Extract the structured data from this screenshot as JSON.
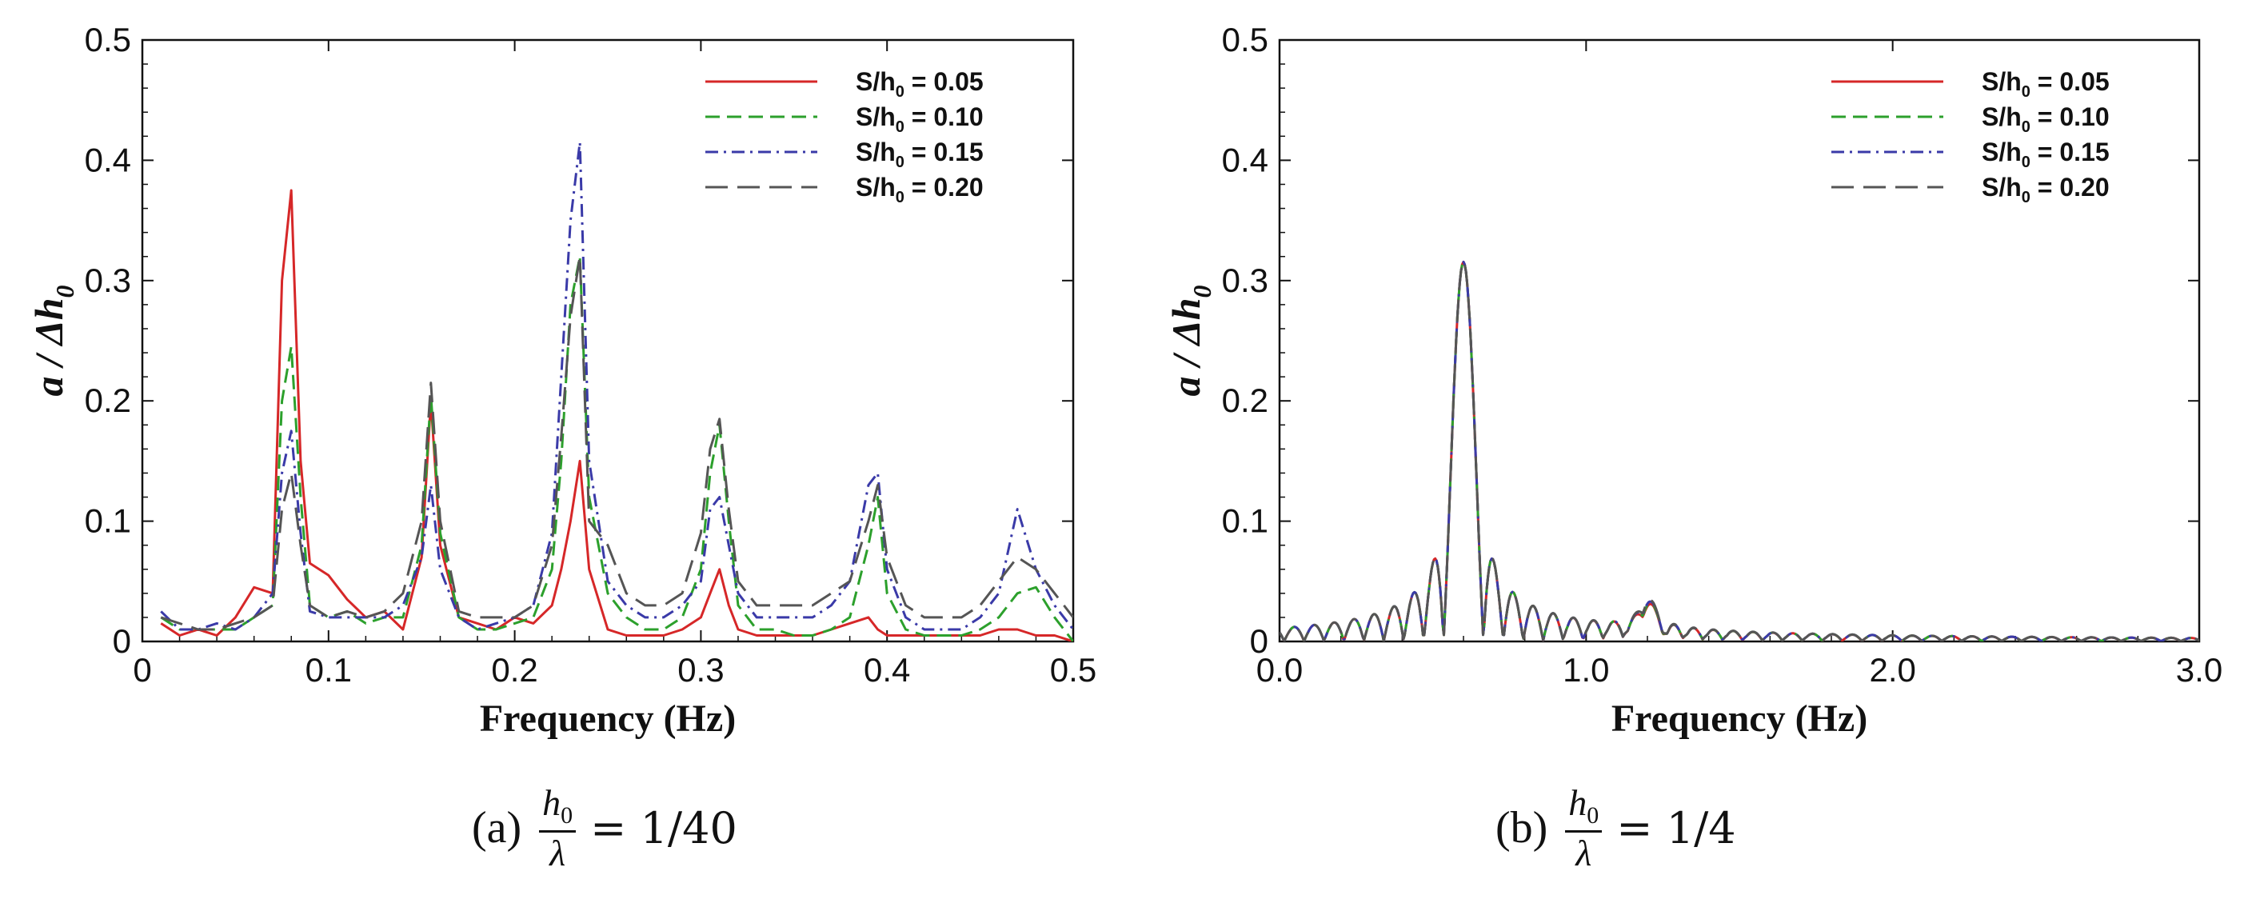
{
  "chart_data": [
    {
      "type": "line",
      "panel": "a",
      "xlabel": "Frequency (Hz)",
      "ylabel": "a / Δh",
      "ylabel_sub": "0",
      "xlim": [
        0,
        0.5
      ],
      "ylim": [
        0,
        0.5
      ],
      "x_ticks": [
        0,
        0.1,
        0.2,
        0.3,
        0.4,
        0.5
      ],
      "x_tick_labels": [
        "0",
        "0.1",
        "0.2",
        "0.3",
        "0.4",
        "0.5"
      ],
      "y_ticks": [
        0,
        0.1,
        0.2,
        0.3,
        0.4,
        0.5
      ],
      "y_tick_labels": [
        "0",
        "0.1",
        "0.2",
        "0.3",
        "0.4",
        "0.5"
      ],
      "legend_position": "top-right",
      "caption": {
        "label": "(a)",
        "frac_num": "h",
        "frac_num_sub": "0",
        "frac_den": "λ",
        "rhs": "= 1/40"
      },
      "series": [
        {
          "name": "S/h₀ = 0.05",
          "legend_main": "S/h",
          "legend_sub": "0",
          "legend_value": " = 0.05",
          "color": "#d62728",
          "dash": "solid",
          "x": [
            0.01,
            0.02,
            0.03,
            0.04,
            0.05,
            0.06,
            0.07,
            0.075,
            0.08,
            0.085,
            0.09,
            0.1,
            0.11,
            0.12,
            0.13,
            0.14,
            0.15,
            0.155,
            0.16,
            0.17,
            0.18,
            0.19,
            0.2,
            0.21,
            0.22,
            0.225,
            0.23,
            0.235,
            0.24,
            0.25,
            0.26,
            0.27,
            0.28,
            0.29,
            0.3,
            0.305,
            0.31,
            0.315,
            0.32,
            0.33,
            0.34,
            0.35,
            0.36,
            0.37,
            0.38,
            0.39,
            0.395,
            0.4,
            0.41,
            0.42,
            0.43,
            0.44,
            0.45,
            0.46,
            0.47,
            0.48,
            0.49,
            0.5
          ],
          "y": [
            0.015,
            0.005,
            0.01,
            0.005,
            0.02,
            0.045,
            0.04,
            0.3,
            0.375,
            0.15,
            0.065,
            0.055,
            0.035,
            0.02,
            0.025,
            0.01,
            0.07,
            0.2,
            0.08,
            0.02,
            0.015,
            0.01,
            0.02,
            0.015,
            0.03,
            0.06,
            0.1,
            0.15,
            0.06,
            0.01,
            0.005,
            0.005,
            0.005,
            0.01,
            0.02,
            0.04,
            0.06,
            0.03,
            0.01,
            0.005,
            0.005,
            0.005,
            0.005,
            0.01,
            0.015,
            0.02,
            0.01,
            0.005,
            0.005,
            0.005,
            0.005,
            0.005,
            0.005,
            0.01,
            0.01,
            0.005,
            0.005,
            0.0
          ]
        },
        {
          "name": "S/h₀ = 0.10",
          "legend_main": "S/h",
          "legend_sub": "0",
          "legend_value": " = 0.10",
          "color": "#2ca02c",
          "dash": "dashed",
          "x": [
            0.01,
            0.02,
            0.03,
            0.04,
            0.05,
            0.06,
            0.07,
            0.075,
            0.08,
            0.085,
            0.09,
            0.1,
            0.11,
            0.12,
            0.13,
            0.14,
            0.15,
            0.155,
            0.16,
            0.17,
            0.18,
            0.19,
            0.2,
            0.21,
            0.22,
            0.225,
            0.23,
            0.235,
            0.24,
            0.25,
            0.26,
            0.27,
            0.28,
            0.29,
            0.3,
            0.305,
            0.31,
            0.315,
            0.32,
            0.33,
            0.34,
            0.35,
            0.36,
            0.37,
            0.38,
            0.39,
            0.395,
            0.4,
            0.41,
            0.42,
            0.43,
            0.44,
            0.45,
            0.46,
            0.47,
            0.48,
            0.49,
            0.5
          ],
          "y": [
            0.02,
            0.01,
            0.01,
            0.01,
            0.01,
            0.02,
            0.03,
            0.2,
            0.245,
            0.12,
            0.03,
            0.02,
            0.025,
            0.015,
            0.02,
            0.02,
            0.08,
            0.205,
            0.09,
            0.02,
            0.01,
            0.01,
            0.015,
            0.02,
            0.06,
            0.15,
            0.28,
            0.32,
            0.12,
            0.04,
            0.02,
            0.01,
            0.01,
            0.02,
            0.06,
            0.14,
            0.18,
            0.1,
            0.03,
            0.01,
            0.01,
            0.005,
            0.005,
            0.01,
            0.02,
            0.08,
            0.12,
            0.04,
            0.01,
            0.005,
            0.005,
            0.005,
            0.01,
            0.02,
            0.04,
            0.045,
            0.02,
            0.0
          ]
        },
        {
          "name": "S/h₀ = 0.15",
          "legend_main": "S/h",
          "legend_sub": "0",
          "legend_value": " = 0.15",
          "color": "#3a3aa8",
          "dash": "dashdot",
          "x": [
            0.01,
            0.02,
            0.03,
            0.04,
            0.05,
            0.06,
            0.07,
            0.075,
            0.08,
            0.085,
            0.09,
            0.1,
            0.11,
            0.12,
            0.13,
            0.14,
            0.15,
            0.155,
            0.16,
            0.17,
            0.18,
            0.19,
            0.2,
            0.21,
            0.22,
            0.225,
            0.23,
            0.235,
            0.24,
            0.25,
            0.26,
            0.27,
            0.28,
            0.29,
            0.3,
            0.305,
            0.31,
            0.315,
            0.32,
            0.33,
            0.34,
            0.35,
            0.36,
            0.37,
            0.38,
            0.39,
            0.395,
            0.4,
            0.41,
            0.42,
            0.43,
            0.44,
            0.45,
            0.46,
            0.47,
            0.48,
            0.49,
            0.5
          ],
          "y": [
            0.025,
            0.01,
            0.01,
            0.015,
            0.01,
            0.02,
            0.04,
            0.14,
            0.175,
            0.09,
            0.025,
            0.02,
            0.02,
            0.02,
            0.02,
            0.03,
            0.07,
            0.13,
            0.06,
            0.02,
            0.01,
            0.015,
            0.02,
            0.03,
            0.09,
            0.22,
            0.35,
            0.415,
            0.15,
            0.05,
            0.03,
            0.02,
            0.02,
            0.03,
            0.05,
            0.11,
            0.12,
            0.08,
            0.04,
            0.02,
            0.02,
            0.02,
            0.02,
            0.03,
            0.05,
            0.13,
            0.14,
            0.06,
            0.02,
            0.01,
            0.01,
            0.01,
            0.02,
            0.04,
            0.11,
            0.06,
            0.03,
            0.01
          ]
        },
        {
          "name": "S/h₀ = 0.20",
          "legend_main": "S/h",
          "legend_sub": "0",
          "legend_value": " = 0.20",
          "color": "#555555",
          "dash": "longdash",
          "x": [
            0.01,
            0.02,
            0.03,
            0.04,
            0.05,
            0.06,
            0.07,
            0.075,
            0.08,
            0.085,
            0.09,
            0.1,
            0.11,
            0.12,
            0.13,
            0.14,
            0.15,
            0.155,
            0.16,
            0.17,
            0.18,
            0.19,
            0.2,
            0.21,
            0.22,
            0.225,
            0.23,
            0.235,
            0.24,
            0.25,
            0.26,
            0.27,
            0.28,
            0.29,
            0.3,
            0.305,
            0.31,
            0.315,
            0.32,
            0.33,
            0.34,
            0.35,
            0.36,
            0.37,
            0.38,
            0.39,
            0.395,
            0.4,
            0.41,
            0.42,
            0.43,
            0.44,
            0.45,
            0.46,
            0.47,
            0.48,
            0.49,
            0.5
          ],
          "y": [
            0.02,
            0.015,
            0.01,
            0.01,
            0.015,
            0.02,
            0.03,
            0.11,
            0.14,
            0.08,
            0.03,
            0.02,
            0.025,
            0.02,
            0.025,
            0.04,
            0.1,
            0.215,
            0.1,
            0.025,
            0.02,
            0.02,
            0.02,
            0.03,
            0.08,
            0.17,
            0.27,
            0.32,
            0.1,
            0.08,
            0.04,
            0.03,
            0.03,
            0.04,
            0.09,
            0.16,
            0.185,
            0.11,
            0.05,
            0.03,
            0.03,
            0.03,
            0.03,
            0.04,
            0.05,
            0.1,
            0.13,
            0.07,
            0.03,
            0.02,
            0.02,
            0.02,
            0.03,
            0.05,
            0.07,
            0.06,
            0.04,
            0.02
          ]
        }
      ]
    },
    {
      "type": "line",
      "panel": "b",
      "xlabel": "Frequency (Hz)",
      "ylabel": "a / Δh",
      "ylabel_sub": "0",
      "xlim": [
        0,
        3.0
      ],
      "ylim": [
        0,
        0.5
      ],
      "x_ticks": [
        0,
        1.0,
        2.0,
        3.0
      ],
      "x_tick_labels": [
        "0.0",
        "1.0",
        "2.0",
        "3.0"
      ],
      "y_ticks": [
        0,
        0.1,
        0.2,
        0.3,
        0.4,
        0.5
      ],
      "y_tick_labels": [
        "0",
        "0.1",
        "0.2",
        "0.3",
        "0.4",
        "0.5"
      ],
      "legend_position": "top-right",
      "caption": {
        "label": "(b)",
        "frac_num": "h",
        "frac_num_sub": "0",
        "frac_den": "λ",
        "rhs": "= 1/4"
      },
      "peak_frequency": 0.6,
      "peak_value": 0.315,
      "series": [
        {
          "name": "S/h₀ = 0.05",
          "legend_main": "S/h",
          "legend_sub": "0",
          "legend_value": " = 0.05",
          "color": "#d62728",
          "dash": "solid"
        },
        {
          "name": "S/h₀ = 0.10",
          "legend_main": "S/h",
          "legend_sub": "0",
          "legend_value": " = 0.10",
          "color": "#2ca02c",
          "dash": "dashed"
        },
        {
          "name": "S/h₀ = 0.15",
          "legend_main": "S/h",
          "legend_sub": "0",
          "legend_value": " = 0.15",
          "color": "#3a3aa8",
          "dash": "dashdot"
        },
        {
          "name": "S/h₀ = 0.20",
          "legend_main": "S/h",
          "legend_sub": "0",
          "legend_value": " = 0.20",
          "color": "#555555",
          "dash": "longdash"
        }
      ]
    }
  ]
}
